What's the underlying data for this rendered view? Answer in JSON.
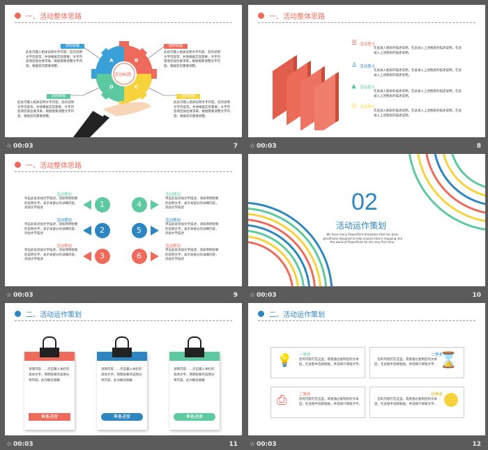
{
  "slides": [
    {
      "num": "7",
      "time": "00:03",
      "title": "一、活动整体思路",
      "center": "活动标题",
      "letters": [
        "A",
        "B",
        "C",
        "D"
      ],
      "labels": [
        "您的标题",
        "您的标题",
        "您的标题",
        "您的标题"
      ],
      "text": "此处可输入相关说明文字内容，您的说明文字内容等，并请根据实际需要，文字内容请您按住要求来，根据需要调整文字内容，根据您的需要调整。"
    },
    {
      "num": "8",
      "time": "00:03",
      "title": "一、活动整体思路",
      "items": [
        {
          "title": "活动意义",
          "text": "在此录入图表的描述说明，在此录入上述图表的描述说明，在此录入上述图表的描述说明。"
        },
        {
          "title": "活动意义",
          "text": "在此录入图表的描述说明，在此录入上述图表的描述说明，在此录入上述图表的描述说明。"
        },
        {
          "title": "活动意义",
          "text": "在此录入图表的描述说明，在此录入上述图表的描述说明，在此录入上述图表的描述说明。"
        },
        {
          "title": "活动意义",
          "text": "在此录入图表的描述说明，在此录入上述图表的描述说明，在此录入上述图表的描述说明。"
        }
      ]
    },
    {
      "num": "9",
      "time": "00:03",
      "title": "一、活动整体思路",
      "items": [
        {
          "n": "1",
          "t": "活动策划"
        },
        {
          "n": "2",
          "t": "活动策划"
        },
        {
          "n": "3",
          "t": "活动策划"
        },
        {
          "n": "4",
          "t": "活动策划"
        },
        {
          "n": "5",
          "t": "活动策划"
        },
        {
          "n": "6",
          "t": "活动策划"
        }
      ],
      "text": "单击此处添加文字描述，添加简明扼要的说明文字，表示本部分的详细内容，添加文字描述"
    },
    {
      "num": "10",
      "time": "00:03",
      "big": "02",
      "title": "活动运作策划",
      "sub": "We have many PowerPoint templates that has been specifically designed to help anyone that is stepping into the world of PowerPoint for the very first time."
    },
    {
      "num": "11",
      "time": "00:03",
      "title": "二、活动运作策划",
      "cards": [
        {
          "text": "详情内容……点击输入本栏的具体文字，简明扼要的说明分项内容，此为概念图解",
          "btn": "筹备进度"
        },
        {
          "text": "详情内容……点击输入本栏的具体文字，简明扼要的说明分项内容，此为概念图解",
          "btn": "筹备进度"
        },
        {
          "text": "详情内容……点击输入本栏的具体文字，简明扼要的说明分项内容，此为概念图解",
          "btn": "筹备进度"
        }
      ]
    },
    {
      "num": "12",
      "time": "00:03",
      "title": "二、活动运作策划",
      "boxes": [
        {
          "title": "一等奖"
        },
        {
          "title": "二等奖"
        },
        {
          "title": "三等奖"
        },
        {
          "title": "优秀奖"
        }
      ],
      "text": "您的内容打在这里，或者通过复制您的文本后，在此框中选择粘贴，并选择只保留文字。"
    }
  ],
  "colors": {
    "red": "#ee6b5b",
    "blue": "#2e86c1",
    "green": "#5cc9a0",
    "yellow": "#f6d33c",
    "purple": "#8e7cc3"
  }
}
